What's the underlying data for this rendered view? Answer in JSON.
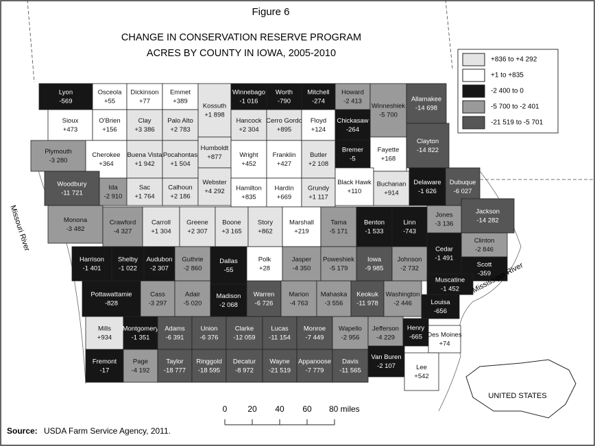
{
  "figure_label": "Figure 6",
  "title_lines": [
    "CHANGE IN CONSERVATION RESERVE PROGRAM",
    "ACRES BY COUNTY IN IOWA, 2005-2010"
  ],
  "legend": [
    {
      "label": "+836  to  +4 292",
      "min": 836,
      "max": 4292,
      "color": "#e4e4e4"
    },
    {
      "label": "+1  to  +835",
      "min": 1,
      "max": 835,
      "color": "#ffffff"
    },
    {
      "label": "-2 400  to  0",
      "min": -2400,
      "max": 0,
      "color": "#161616"
    },
    {
      "label": "-5 700  to  -2 401",
      "min": -5700,
      "max": -2401,
      "color": "#9a9a9a"
    },
    {
      "label": "-21 519  to  -5 701",
      "min": -21519,
      "max": -5701,
      "color": "#565656"
    }
  ],
  "counties": [
    {
      "name": "Lyon",
      "value": -569,
      "label": "-569"
    },
    {
      "name": "Osceola",
      "value": 55,
      "label": "+55"
    },
    {
      "name": "Dickinson",
      "value": 77,
      "label": "+77"
    },
    {
      "name": "Emmet",
      "value": 389,
      "label": "+389"
    },
    {
      "name": "Kossuth",
      "value": 1898,
      "label": "+1 898"
    },
    {
      "name": "Winnebago",
      "value": -1016,
      "label": "-1 016"
    },
    {
      "name": "Worth",
      "value": -790,
      "label": "-790"
    },
    {
      "name": "Mitchell",
      "value": -274,
      "label": "-274"
    },
    {
      "name": "Howard",
      "value": -2413,
      "label": "-2 413"
    },
    {
      "name": "Winneshiek",
      "value": -5700,
      "label": "-5 700"
    },
    {
      "name": "Allamakee",
      "value": -14698,
      "label": "-14 698"
    },
    {
      "name": "Sioux",
      "value": 473,
      "label": "+473"
    },
    {
      "name": "O'Brien",
      "value": 156,
      "label": "+156"
    },
    {
      "name": "Clay",
      "value": 3386,
      "label": "+3 386"
    },
    {
      "name": "Palo Alto",
      "value": 2783,
      "label": "+2 783"
    },
    {
      "name": "Hancock",
      "value": 2304,
      "label": "+2 304"
    },
    {
      "name": "Cerro Gordo",
      "value": 895,
      "label": "+895"
    },
    {
      "name": "Floyd",
      "value": 124,
      "label": "+124"
    },
    {
      "name": "Chickasaw",
      "value": -264,
      "label": "-264"
    },
    {
      "name": "Fayette",
      "value": 168,
      "label": "+168"
    },
    {
      "name": "Clayton",
      "value": -14822,
      "label": "-14 822"
    },
    {
      "name": "Plymouth",
      "value": -3280,
      "label": "-3 280"
    },
    {
      "name": "Cherokee",
      "value": 364,
      "label": "+364"
    },
    {
      "name": "Buena Vista",
      "value": 1942,
      "label": "+1 942"
    },
    {
      "name": "Pocahontas",
      "value": 1504,
      "label": "+1 504"
    },
    {
      "name": "Humboldt",
      "value": 877,
      "label": "+877"
    },
    {
      "name": "Wright",
      "value": 452,
      "label": "+452"
    },
    {
      "name": "Franklin",
      "value": 427,
      "label": "+427"
    },
    {
      "name": "Butler",
      "value": 2108,
      "label": "+2 108"
    },
    {
      "name": "Bremer",
      "value": -5,
      "label": "-5"
    },
    {
      "name": "Woodbury",
      "value": -11721,
      "label": "-11 721"
    },
    {
      "name": "Ida",
      "value": -2910,
      "label": "-2 910"
    },
    {
      "name": "Sac",
      "value": 1764,
      "label": "+1 764"
    },
    {
      "name": "Calhoun",
      "value": 2186,
      "label": "+2 186"
    },
    {
      "name": "Webster",
      "value": 4292,
      "label": "+4 292"
    },
    {
      "name": "Hamilton",
      "value": 835,
      "label": "+835"
    },
    {
      "name": "Hardin",
      "value": 669,
      "label": "+669"
    },
    {
      "name": "Grundy",
      "value": 1117,
      "label": "+1 117"
    },
    {
      "name": "Black Hawk",
      "value": 110,
      "label": "+110"
    },
    {
      "name": "Buchanan",
      "value": 914,
      "label": "+914"
    },
    {
      "name": "Delaware",
      "value": -1626,
      "label": "-1 626"
    },
    {
      "name": "Dubuque",
      "value": -6027,
      "label": "-6 027"
    },
    {
      "name": "Monona",
      "value": -3482,
      "label": "-3 482"
    },
    {
      "name": "Crawford",
      "value": -4327,
      "label": "-4 327"
    },
    {
      "name": "Carroll",
      "value": 1304,
      "label": "+1 304"
    },
    {
      "name": "Greene",
      "value": 2307,
      "label": "+2 307"
    },
    {
      "name": "Boone",
      "value": 3165,
      "label": "+3 165"
    },
    {
      "name": "Story",
      "value": 862,
      "label": "+862"
    },
    {
      "name": "Marshall",
      "value": 219,
      "label": "+219"
    },
    {
      "name": "Tama",
      "value": -5171,
      "label": "-5 171"
    },
    {
      "name": "Benton",
      "value": -1533,
      "label": "-1 533"
    },
    {
      "name": "Linn",
      "value": -743,
      "label": "-743"
    },
    {
      "name": "Jones",
      "value": -3136,
      "label": "-3 136"
    },
    {
      "name": "Jackson",
      "value": -14282,
      "label": "-14 282"
    },
    {
      "name": "Clinton",
      "value": -2846,
      "label": "-2 846"
    },
    {
      "name": "Cedar",
      "value": -1491,
      "label": "-1 491"
    },
    {
      "name": "Harrison",
      "value": -1401,
      "label": "-1 401"
    },
    {
      "name": "Shelby",
      "value": -1022,
      "label": "-1 022"
    },
    {
      "name": "Audubon",
      "value": -2307,
      "label": "-2 307"
    },
    {
      "name": "Guthrie",
      "value": -2860,
      "label": "-2 860"
    },
    {
      "name": "Dallas",
      "value": -55,
      "label": "-55"
    },
    {
      "name": "Polk",
      "value": 28,
      "label": "+28"
    },
    {
      "name": "Jasper",
      "value": -4350,
      "label": "-4 350"
    },
    {
      "name": "Poweshiek",
      "value": -5179,
      "label": "-5 179"
    },
    {
      "name": "Iowa",
      "value": -9985,
      "label": "-9 985"
    },
    {
      "name": "Johnson",
      "value": -2732,
      "label": "-2 732"
    },
    {
      "name": "Scott",
      "value": -359,
      "label": "-359"
    },
    {
      "name": "Muscatine",
      "value": -1452,
      "label": "-1 452"
    },
    {
      "name": "Pottawattamie",
      "value": -828,
      "label": "-828"
    },
    {
      "name": "Cass",
      "value": -3297,
      "label": "-3 297"
    },
    {
      "name": "Adair",
      "value": -5020,
      "label": "-5 020"
    },
    {
      "name": "Madison",
      "value": -2068,
      "label": "-2 068"
    },
    {
      "name": "Warren",
      "value": -6726,
      "label": "-6 726"
    },
    {
      "name": "Marion",
      "value": -4763,
      "label": "-4 763"
    },
    {
      "name": "Mahaska",
      "value": -3556,
      "label": "-3 556"
    },
    {
      "name": "Keokuk",
      "value": -11978,
      "label": "-11 978"
    },
    {
      "name": "Washington",
      "value": -2446,
      "label": "-2 446"
    },
    {
      "name": "Louisa",
      "value": -656,
      "label": "-656"
    },
    {
      "name": "Mills",
      "value": 934,
      "label": "+934"
    },
    {
      "name": "Montgomery",
      "value": -1351,
      "label": "-1 351"
    },
    {
      "name": "Adams",
      "value": -6391,
      "label": "-6 391"
    },
    {
      "name": "Union",
      "value": -6376,
      "label": "-6 376"
    },
    {
      "name": "Clarke",
      "value": -12059,
      "label": "-12 059"
    },
    {
      "name": "Lucas",
      "value": -11154,
      "label": "-11 154"
    },
    {
      "name": "Monroe",
      "value": -7449,
      "label": "-7 449"
    },
    {
      "name": "Wapello",
      "value": -2956,
      "label": "-2 956"
    },
    {
      "name": "Jefferson",
      "value": -4229,
      "label": "-4 229"
    },
    {
      "name": "Henry",
      "value": -665,
      "label": "-665"
    },
    {
      "name": "Des Moines",
      "value": 74,
      "label": "+74"
    },
    {
      "name": "Fremont",
      "value": -17,
      "label": "-17"
    },
    {
      "name": "Page",
      "value": -4192,
      "label": "-4 192"
    },
    {
      "name": "Taylor",
      "value": -18777,
      "label": "-18 777"
    },
    {
      "name": "Ringgold",
      "value": -18595,
      "label": "-18 595"
    },
    {
      "name": "Decatur",
      "value": -8972,
      "label": "-8 972"
    },
    {
      "name": "Wayne",
      "value": -21519,
      "label": "-21 519"
    },
    {
      "name": "Appanoose",
      "value": -7779,
      "label": "-7 779"
    },
    {
      "name": "Davis",
      "value": -11565,
      "label": "-11 565"
    },
    {
      "name": "Van Buren",
      "value": -2107,
      "label": "-2 107"
    },
    {
      "name": "Lee",
      "value": 542,
      "label": "+542"
    }
  ],
  "rivers": [
    "Missouri River",
    "Mississippi River"
  ],
  "scale": {
    "ticks": [
      0,
      20,
      40,
      60,
      {
        "value": 80,
        "label": "80 miles"
      }
    ]
  },
  "inset_label": "UNITED STATES",
  "source": {
    "prefix": "Source:",
    "text": "USDA Farm Service Agency, 2011."
  }
}
